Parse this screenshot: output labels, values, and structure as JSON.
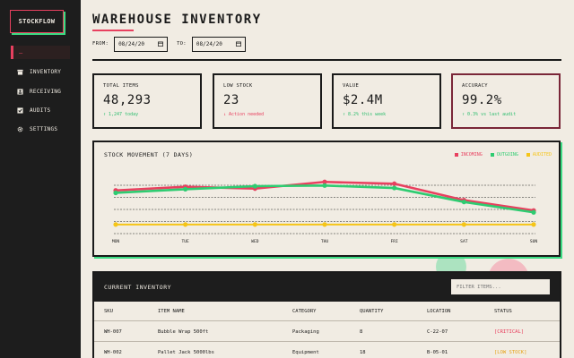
{
  "sidebar": {
    "logo": "STOCKFLOW",
    "active_mark": "—",
    "items": [
      {
        "label": "INVENTORY",
        "icon": "box-icon"
      },
      {
        "label": "RECEIVING",
        "icon": "receiving-icon"
      },
      {
        "label": "AUDITS",
        "icon": "check-square-icon"
      },
      {
        "label": "SETTINGS",
        "icon": "gear-icon"
      }
    ]
  },
  "header": {
    "title": "WAREHOUSE INVENTORY",
    "from_label": "FROM:",
    "from_value": "08/24/20",
    "to_label": "TO:",
    "to_value": "08/24/20"
  },
  "kpis": [
    {
      "label": "TOTAL ITEMS",
      "value": "48,293",
      "sub": "↑ 1,247 today",
      "tone": "green"
    },
    {
      "label": "LOW STOCK",
      "value": "23",
      "sub": "↓ Action needed",
      "tone": "red"
    },
    {
      "label": "VALUE",
      "value": "$2.4M",
      "sub": "↑ 8.2% this week",
      "tone": "green"
    },
    {
      "label": "ACCURACY",
      "value": "99.2%",
      "sub": "↑ 0.3% vs last audit",
      "tone": "green"
    }
  ],
  "chart_data": {
    "type": "line",
    "title": "STOCK MOVEMENT (7 DAYS)",
    "categories": [
      "MON",
      "TUE",
      "WED",
      "THU",
      "FRI",
      "SAT",
      "SUN"
    ],
    "series": [
      {
        "name": "INCOMING",
        "color": "#e8405f",
        "values": [
          68,
          74,
          71,
          82,
          79,
          52,
          35
        ]
      },
      {
        "name": "OUTGOING",
        "color": "#2ecc71",
        "values": [
          64,
          70,
          75,
          76,
          72,
          49,
          32
        ]
      },
      {
        "name": "AUDITED",
        "color": "#f5c518",
        "values": [
          12,
          12,
          12,
          12,
          12,
          12,
          12
        ]
      }
    ],
    "ylim": [
      0,
      100
    ],
    "grid": true
  },
  "table": {
    "title": "CURRENT INVENTORY",
    "filter_placeholder": "FILTER ITEMS...",
    "columns": [
      "SKU",
      "ITEM NAME",
      "CATEGORY",
      "QUANTITY",
      "LOCATION",
      "STATUS"
    ],
    "rows": [
      {
        "sku": "WH-007",
        "name": "Bubble Wrap 500ft",
        "category": "Packaging",
        "qty": "8",
        "loc": "C-22-07",
        "status": "[CRITICAL]",
        "tone": "crit"
      },
      {
        "sku": "WH-002",
        "name": "Pallet Jack 5000lbs",
        "category": "Equipment",
        "qty": "18",
        "loc": "B-05-01",
        "status": "[LOW STOCK]",
        "tone": "low"
      }
    ]
  },
  "colors": {
    "accent": "#e8405f",
    "green": "#3ddc84",
    "yellow": "#f5c518",
    "dark": "#1d1d1d",
    "bg": "#f1ece3"
  }
}
